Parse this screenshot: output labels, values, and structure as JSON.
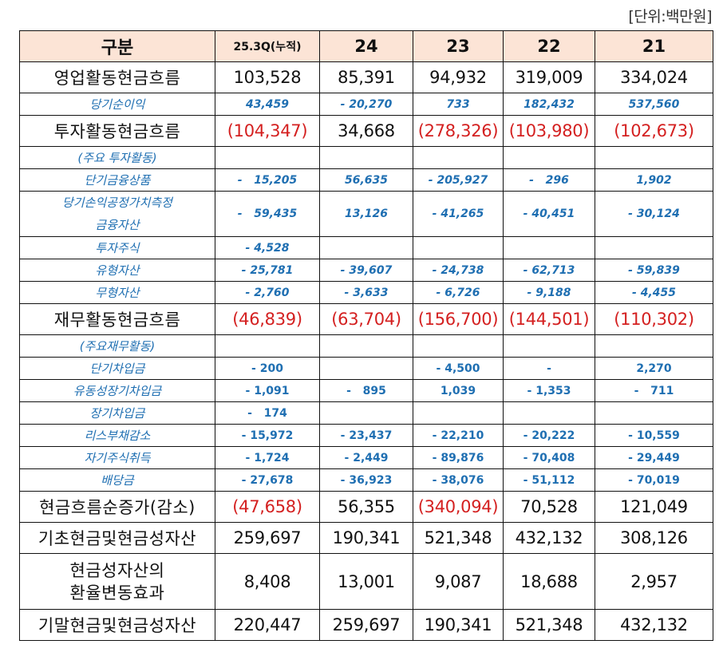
{
  "unit_label": "[단위:백만원]",
  "header": {
    "label": "구분",
    "columns": [
      "25.3Q(누적)",
      "24",
      "23",
      "22",
      "21"
    ]
  },
  "rows": [
    {
      "type": "main",
      "label": "영업활동현금흐름",
      "values": [
        "103,528",
        "85,391",
        "94,932",
        "319,009",
        "334,024"
      ],
      "negative": [
        false,
        false,
        false,
        false,
        false
      ]
    },
    {
      "type": "sub",
      "label": "당기순이익",
      "values": [
        "43,459",
        "- 20,270",
        "733",
        "182,432",
        "537,560"
      ]
    },
    {
      "type": "main",
      "label": "투자활동현금흐름",
      "values": [
        "(104,347)",
        "34,668",
        "(278,326)",
        "(103,980)",
        "(102,673)"
      ],
      "negative": [
        true,
        false,
        true,
        true,
        true
      ]
    },
    {
      "type": "sub",
      "label": "(주요  투자활동)",
      "values": [
        "",
        "",
        "",
        "",
        ""
      ]
    },
    {
      "type": "sub",
      "label": "단기금융상품",
      "values": [
        "-   15,205",
        "56,635",
        "- 205,927",
        "-   296",
        "1,902"
      ]
    },
    {
      "type": "sub",
      "label": "당기손익공정가치측정",
      "label2": "금융자산",
      "values": [
        "-   59,435",
        "13,126",
        "- 41,265",
        "- 40,451",
        "- 30,124"
      ]
    },
    {
      "type": "sub",
      "label": "투자주식",
      "values": [
        "- 4,528",
        "",
        "",
        "",
        ""
      ]
    },
    {
      "type": "sub",
      "label": "유형자산",
      "values": [
        "- 25,781",
        "- 39,607",
        "- 24,738",
        "- 62,713",
        "- 59,839"
      ]
    },
    {
      "type": "sub",
      "label": "무형자산",
      "values": [
        "- 2,760",
        "- 3,633",
        "- 6,726",
        "- 9,188",
        "- 4,455"
      ]
    },
    {
      "type": "main",
      "label": "재무활동현금흐름",
      "values": [
        "(46,839)",
        "(63,704)",
        "(156,700)",
        "(144,501)",
        "(110,302)"
      ],
      "negative": [
        true,
        true,
        true,
        true,
        true
      ]
    },
    {
      "type": "sub",
      "label": "(주요재무활동)",
      "values": [
        "",
        "",
        "",
        "",
        ""
      ]
    },
    {
      "type": "sub2",
      "label": "단기차입금",
      "values": [
        "- 200",
        "",
        "- 4,500",
        "-",
        "2,270"
      ]
    },
    {
      "type": "sub2",
      "label": "유동성장기차입금",
      "values": [
        "- 1,091",
        "-   895",
        "1,039",
        "- 1,353",
        "-   711"
      ]
    },
    {
      "type": "sub2",
      "label": "장기차입금",
      "values": [
        "-   174",
        "",
        "",
        "",
        ""
      ]
    },
    {
      "type": "sub2",
      "label": "리스부채감소",
      "values": [
        "- 15,972",
        "- 23,437",
        "- 22,210",
        "- 20,222",
        "- 10,559"
      ]
    },
    {
      "type": "sub2",
      "label": "자기주식취득",
      "values": [
        "- 1,724",
        "- 2,449",
        "- 89,876",
        "- 70,408",
        "- 29,449"
      ]
    },
    {
      "type": "sub2",
      "label": "배당금",
      "values": [
        "- 27,678",
        "- 36,923",
        "- 38,076",
        "- 51,112",
        "- 70,019"
      ]
    },
    {
      "type": "main",
      "label": "현금흐름순증가(감소)",
      "values": [
        "(47,658)",
        "56,355",
        "(340,094)",
        "70,528",
        "121,049"
      ],
      "negative": [
        true,
        false,
        true,
        false,
        false
      ]
    },
    {
      "type": "main",
      "label": "기초현금및현금성자산",
      "values": [
        "259,697",
        "190,341",
        "521,348",
        "432,132",
        "308,126"
      ],
      "negative": [
        false,
        false,
        false,
        false,
        false
      ]
    },
    {
      "type": "main",
      "label": "현금성자산의",
      "label2": "환율변동효과",
      "values": [
        "8,408",
        "13,001",
        "9,087",
        "18,688",
        "2,957"
      ],
      "negative": [
        false,
        false,
        false,
        false,
        false
      ]
    },
    {
      "type": "main",
      "label": "기말현금및현금성자산",
      "values": [
        "220,447",
        "259,697",
        "190,341",
        "521,348",
        "432,132"
      ],
      "negative": [
        false,
        false,
        false,
        false,
        false
      ]
    }
  ],
  "colors": {
    "header_bg": "#fce4d6",
    "sub_text": "#1f6fb2",
    "negative_text": "#d42020",
    "border": "#111111"
  }
}
